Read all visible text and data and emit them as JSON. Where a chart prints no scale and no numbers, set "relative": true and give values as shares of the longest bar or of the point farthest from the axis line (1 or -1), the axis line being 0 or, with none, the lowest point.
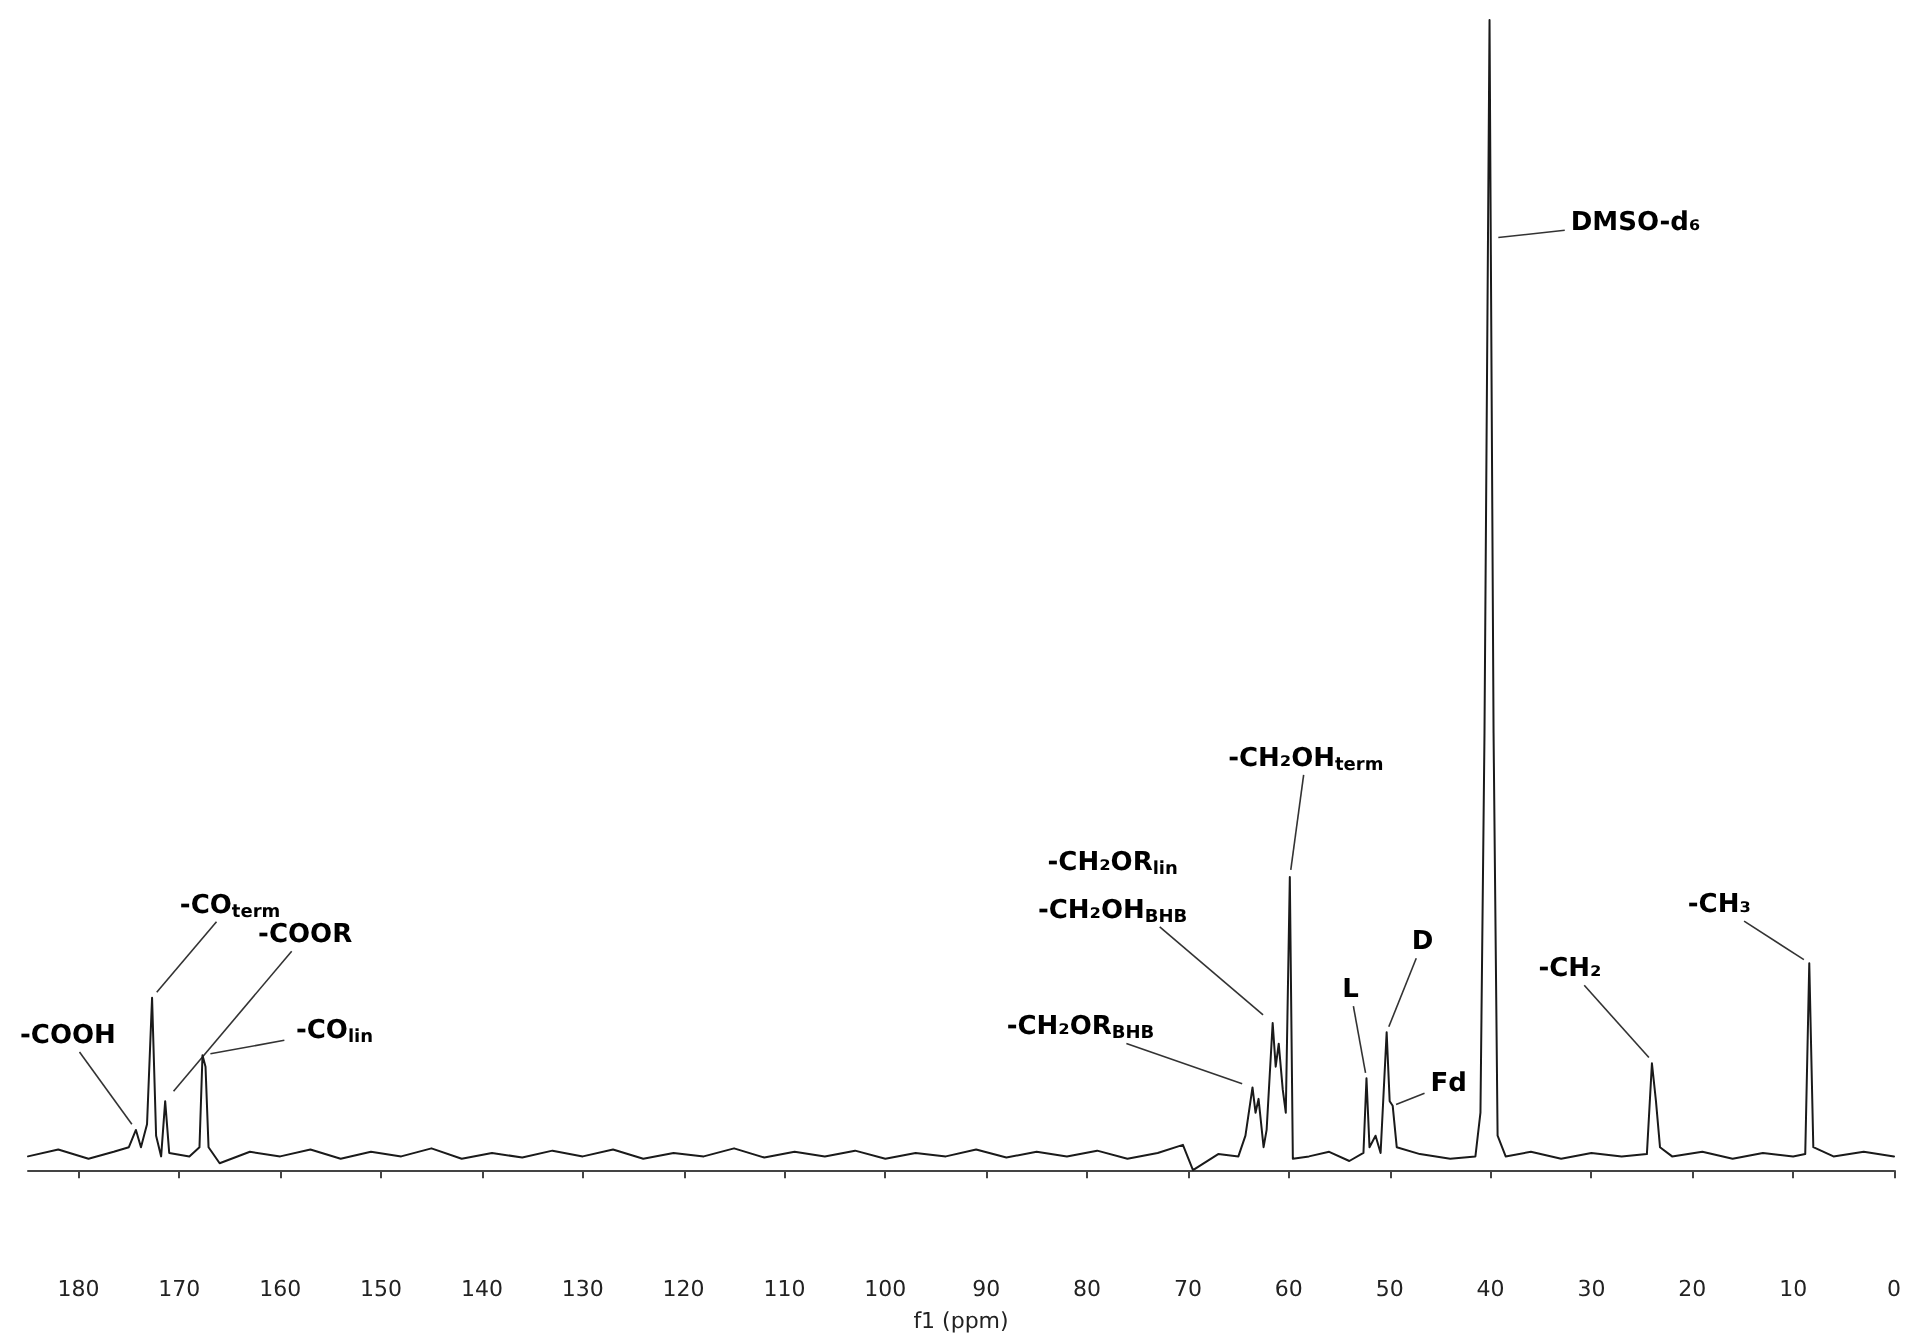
{
  "chart_data": {
    "type": "line",
    "relative": true,
    "xlabel": "f1 (ppm)",
    "xlim": [
      185,
      0
    ],
    "xticks": [
      180,
      170,
      160,
      150,
      140,
      130,
      120,
      110,
      100,
      90,
      80,
      70,
      60,
      50,
      40,
      30,
      20,
      10,
      0
    ],
    "grid": false,
    "marker": "none",
    "line_style": "solid",
    "tick_labels": "x",
    "series": [
      {
        "color": "#1a1a1a",
        "x": [
          185,
          182,
          179,
          176.5,
          175,
          174.3,
          173.8,
          173.2,
          172.7,
          172.3,
          171.8,
          171.4,
          171.0,
          169,
          168,
          167.7,
          167.4,
          167.1,
          166,
          163,
          160,
          157,
          154,
          151,
          148,
          145,
          142,
          139,
          136,
          133,
          130,
          127,
          124,
          121,
          118,
          115,
          112,
          109,
          106,
          103,
          100,
          97,
          94,
          91,
          88,
          85,
          82,
          79,
          76,
          73,
          70.5,
          69.5,
          67,
          65,
          64.3,
          63.6,
          63.3,
          63.0,
          62.5,
          62.2,
          61.6,
          61.3,
          61.0,
          60.6,
          60.3,
          59.9,
          59.6,
          58,
          56,
          54,
          52.6,
          52.3,
          52.0,
          51.4,
          50.9,
          50.3,
          50.0,
          49.7,
          49.3,
          47,
          44,
          41.5,
          41,
          40.6,
          40.1,
          39.7,
          39.3,
          38.5,
          36,
          33,
          30,
          27,
          24.5,
          24.0,
          23.6,
          23.2,
          22,
          19,
          16,
          13,
          10,
          8.8,
          8.4,
          8.0,
          6,
          3,
          0
        ],
        "values": [
          0.012,
          0.018,
          0.01,
          0.016,
          0.02,
          0.035,
          0.02,
          0.04,
          0.15,
          0.03,
          0.012,
          0.06,
          0.015,
          0.012,
          0.02,
          0.1,
          0.09,
          0.02,
          0.006,
          0.016,
          0.012,
          0.018,
          0.01,
          0.016,
          0.012,
          0.019,
          0.01,
          0.015,
          0.011,
          0.017,
          0.012,
          0.018,
          0.01,
          0.015,
          0.012,
          0.019,
          0.011,
          0.016,
          0.012,
          0.017,
          0.01,
          0.015,
          0.012,
          0.018,
          0.011,
          0.016,
          0.012,
          0.017,
          0.01,
          0.015,
          0.022,
          0,
          0.014,
          0.012,
          0.03,
          0.072,
          0.05,
          0.062,
          0.02,
          0.035,
          0.128,
          0.09,
          0.11,
          0.07,
          0.05,
          0.255,
          0.01,
          0.012,
          0.016,
          0.008,
          0.015,
          0.08,
          0.02,
          0.03,
          0.015,
          0.12,
          0.06,
          0.056,
          0.02,
          0.014,
          0.01,
          0.012,
          0.05,
          0.38,
          1,
          0.38,
          0.03,
          0.012,
          0.016,
          0.01,
          0.015,
          0.012,
          0.014,
          0.093,
          0.06,
          0.02,
          0.012,
          0.016,
          0.01,
          0.015,
          0.012,
          0.014,
          0.18,
          0.02,
          0.012,
          0.016,
          0.012
        ]
      }
    ],
    "annotations": [
      {
        "text": "-COOH",
        "x": 174.3,
        "y": 0.035
      },
      {
        "text": "-CO$_{term}$",
        "x": 172.7,
        "y": 0.15
      },
      {
        "text": "-COOR",
        "x": 171.4,
        "y": 0.06
      },
      {
        "text": "-CO$_{lin}$",
        "x": 167.7,
        "y": 0.1
      },
      {
        "text": "-CH₂OR$_{BHB}$",
        "x": 63.6,
        "y": 0.072
      },
      {
        "text": "-CH₂OR$_{lin}$\n-CH₂OH$_{BHB}$",
        "x": 61.6,
        "y": 0.128
      },
      {
        "text": "-CH₂OH$_{term}$",
        "x": 59.9,
        "y": 0.255
      },
      {
        "text": "L",
        "x": 52.3,
        "y": 0.08
      },
      {
        "text": "D",
        "x": 50.3,
        "y": 0.12
      },
      {
        "text": "Fd",
        "x": 49.7,
        "y": 0.056
      },
      {
        "text": "DMSO-d₆",
        "x": 40.1,
        "y": 0.81
      },
      {
        "text": "-CH₂",
        "x": 23.8,
        "y": 0.093
      },
      {
        "text": "-CH₃",
        "x": 8.4,
        "y": 0.18
      }
    ]
  }
}
